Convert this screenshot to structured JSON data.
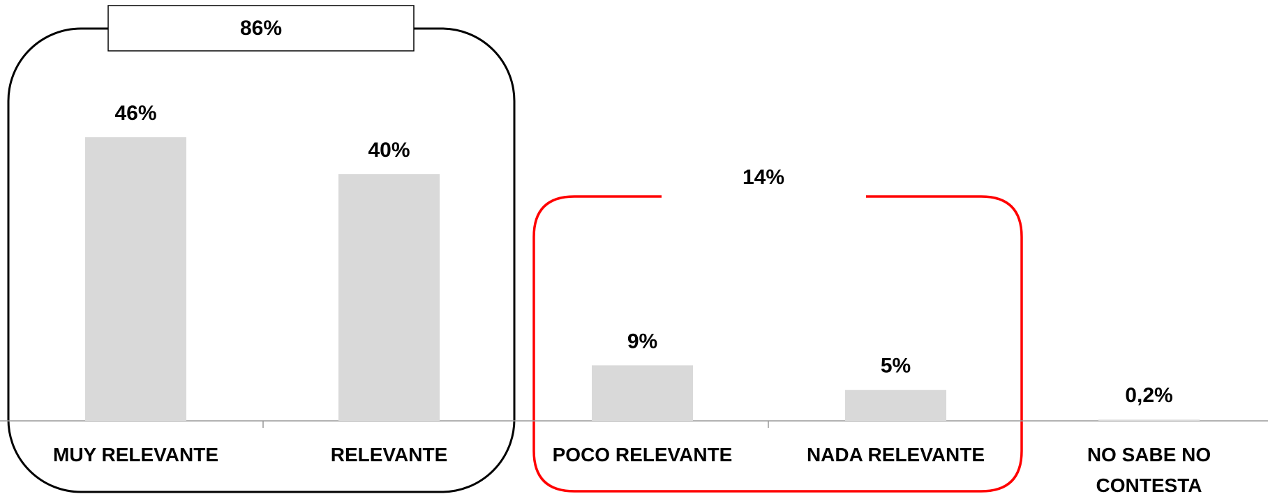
{
  "chart_data": {
    "type": "bar",
    "categories": [
      "MUY RELEVANTE",
      "RELEVANTE",
      "POCO RELEVANTE",
      "NADA RELEVANTE",
      "NO SABE NO CONTESTA"
    ],
    "values": [
      46,
      40,
      9,
      5,
      0.2
    ],
    "value_labels": [
      "46%",
      "40%",
      "9%",
      "5%",
      "0,2%"
    ],
    "color": "#d9d9d9",
    "annotations": [
      "86%",
      "14%"
    ],
    "annotation_colors": [
      "#000000",
      "#ff0000"
    ]
  }
}
